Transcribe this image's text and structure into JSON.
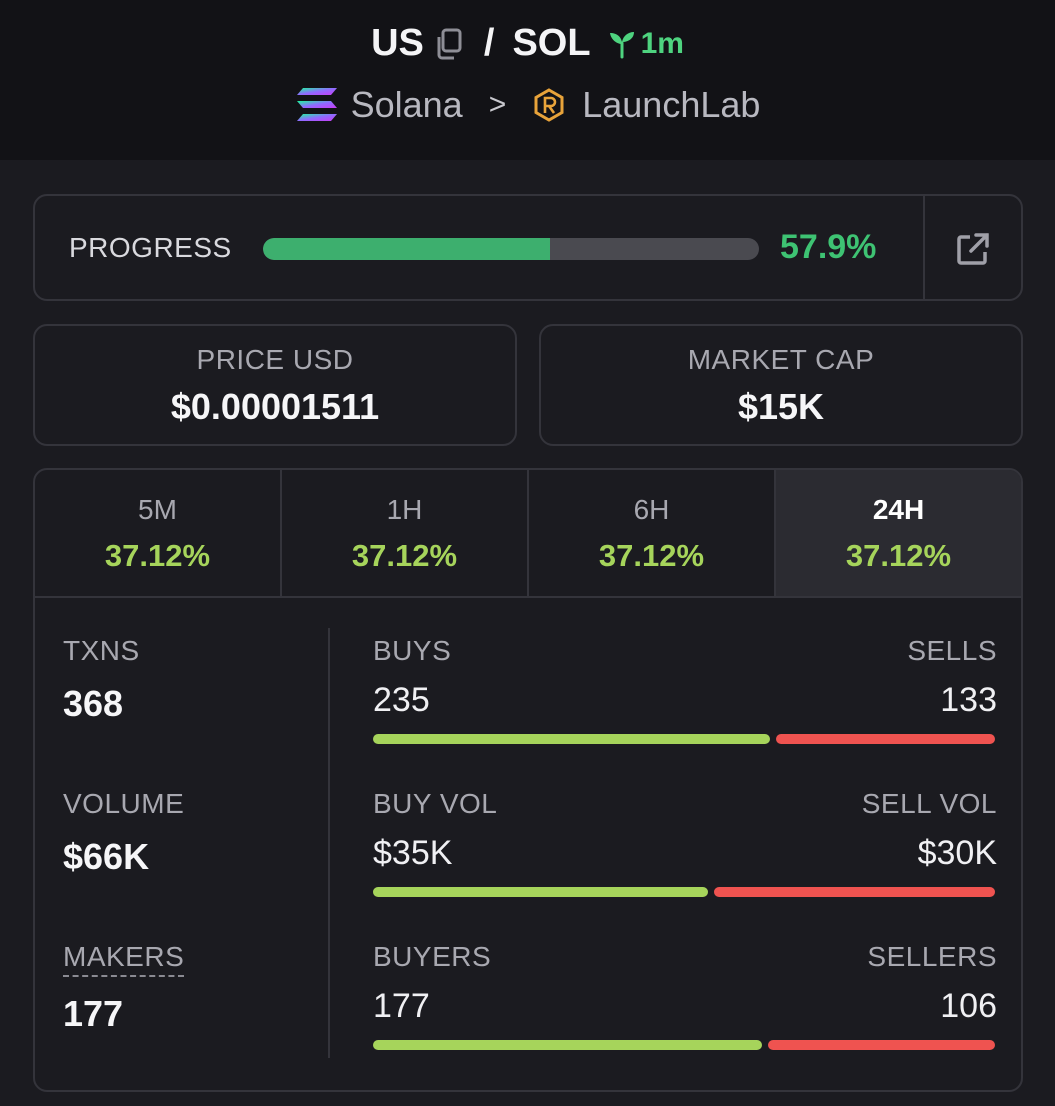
{
  "header": {
    "token": "US",
    "quote": "SOL",
    "separator": "/",
    "age": "1m",
    "chain": "Solana",
    "chevron": ">",
    "dex": "LaunchLab"
  },
  "progress": {
    "label": "PROGRESS",
    "value_text": "57.9%",
    "fraction": 0.579
  },
  "price": {
    "label": "PRICE USD",
    "value": "$0.00001511"
  },
  "market_cap": {
    "label": "MARKET CAP",
    "value": "$15K"
  },
  "tabs": [
    {
      "label": "5M",
      "value": "37.12%",
      "active": false
    },
    {
      "label": "1H",
      "value": "37.12%",
      "active": false
    },
    {
      "label": "6H",
      "value": "37.12%",
      "active": false
    },
    {
      "label": "24H",
      "value": "37.12%",
      "active": true
    }
  ],
  "metrics": {
    "txns": {
      "label": "TXNS",
      "value": "368"
    },
    "volume": {
      "label": "VOLUME",
      "value": "$66K"
    },
    "makers": {
      "label": "MAKERS",
      "value": "177"
    }
  },
  "splits": {
    "txns": {
      "left_label": "BUYS",
      "right_label": "SELLS",
      "left_value": "235",
      "right_value": "133",
      "buy": 235,
      "sell": 133
    },
    "volume": {
      "left_label": "BUY VOL",
      "right_label": "SELL VOL",
      "left_value": "$35K",
      "right_value": "$30K",
      "buy": 35,
      "sell": 30
    },
    "makers": {
      "left_label": "BUYERS",
      "right_label": "SELLERS",
      "left_value": "177",
      "right_value": "106",
      "buy": 177,
      "sell": 106
    }
  },
  "colors": {
    "accent_green": "#3ec373",
    "change_green": "#a6d45b",
    "sell_red": "#ef5350"
  },
  "icons": {
    "copy": "copy-icon",
    "age": "sprout-icon",
    "chain": "solana-logo-icon",
    "dex": "launchlab-logo-icon",
    "external": "external-link-icon"
  }
}
